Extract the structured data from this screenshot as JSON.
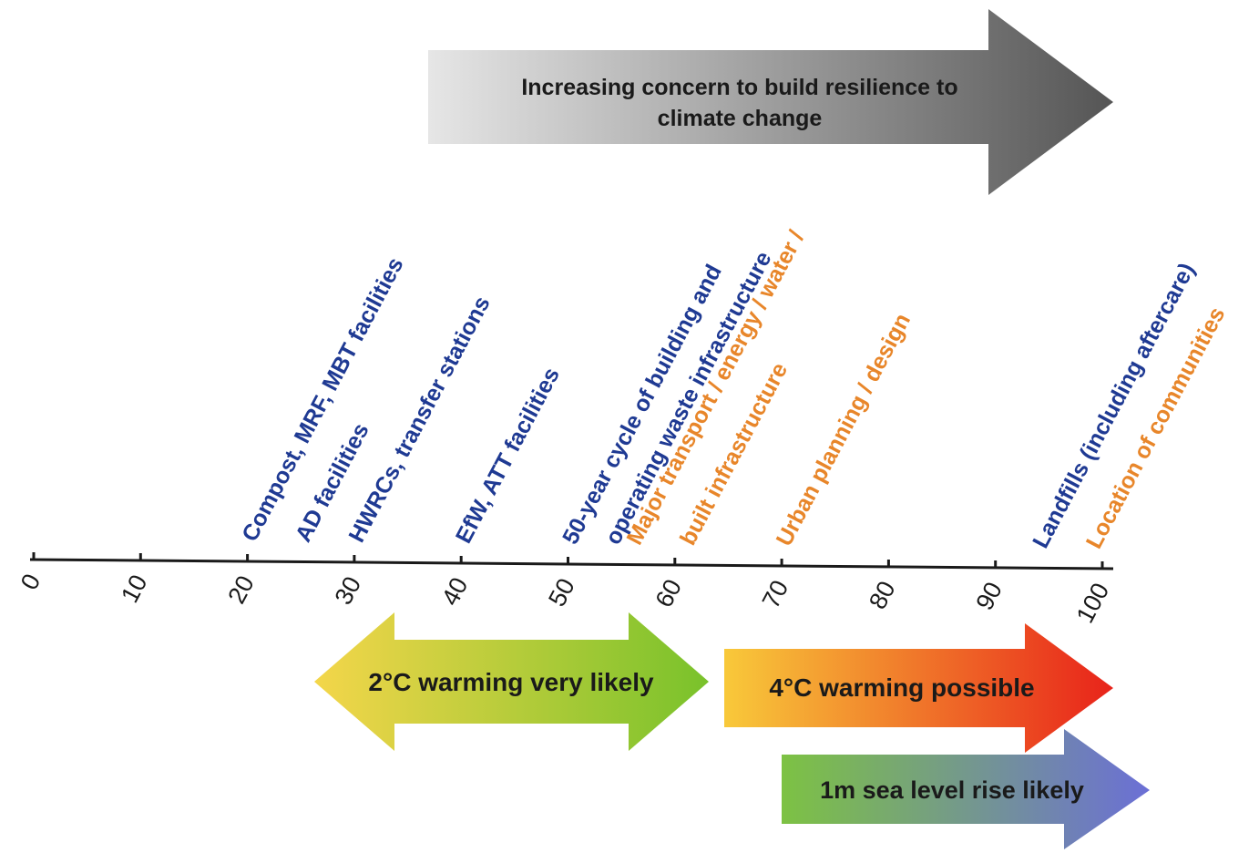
{
  "colors": {
    "waste_item": "#1f3a93",
    "wider_item": "#e8862a",
    "axis": "#1a1a1a",
    "concern_arrow_start": "#e6e6e6",
    "concern_arrow_end": "#555555",
    "warming2_start": "#f4d64a",
    "warming2_end": "#79c22b",
    "warming4_start": "#f8c93a",
    "warming4_end": "#e8231a",
    "sea_level_start": "#7dc243",
    "sea_level_end": "#6b6fd6"
  },
  "concern_arrow": {
    "line1": "Increasing concern to build resilience to",
    "line2": "climate change"
  },
  "timeline": {
    "ticks": [
      "0",
      "10",
      "20",
      "30",
      "40",
      "50",
      "60",
      "70",
      "80",
      "90",
      "100"
    ]
  },
  "items": [
    {
      "id": "compost",
      "text": "Compost, MRF, MBT facilities",
      "year": 20,
      "kind": "waste_item"
    },
    {
      "id": "ad",
      "text": "AD facilities",
      "year": 25,
      "kind": "waste_item"
    },
    {
      "id": "hwrc",
      "text": "HWRCs, transfer stations",
      "year": 30,
      "kind": "waste_item"
    },
    {
      "id": "efw",
      "text": "EfW, ATT facilities",
      "year": 40,
      "kind": "waste_item"
    },
    {
      "id": "cycle1",
      "text": "50-year cycle of building and",
      "year": 50,
      "kind": "waste_item"
    },
    {
      "id": "cycle2",
      "text": "operating waste infrastructure",
      "year": 54,
      "kind": "waste_item"
    },
    {
      "id": "major1",
      "text": "Major transport / energy / water /",
      "year": 56,
      "kind": "wider_item"
    },
    {
      "id": "major2",
      "text": "built infrastructure",
      "year": 61,
      "kind": "wider_item"
    },
    {
      "id": "urban",
      "text": "Urban planning / design",
      "year": 70,
      "kind": "wider_item"
    },
    {
      "id": "landfill",
      "text": "Landfills (including aftercare)",
      "year": 94,
      "kind": "waste_item"
    },
    {
      "id": "location",
      "text": "Location of communities",
      "year": 99,
      "kind": "wider_item"
    }
  ],
  "warming2": {
    "label": "2°C warming very likely",
    "from": 26,
    "to": 63
  },
  "warming4": {
    "label": "4°C warming possible",
    "from": 65,
    "to": 100
  },
  "sea_level": {
    "label": "1m sea level rise likely",
    "from": 70,
    "to": 104
  }
}
